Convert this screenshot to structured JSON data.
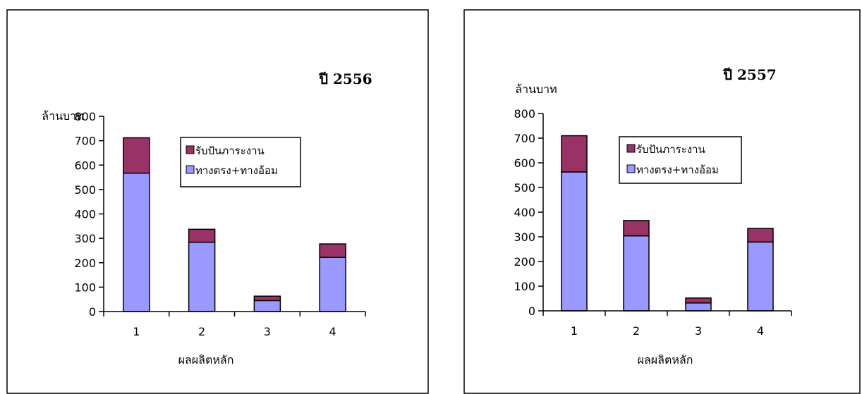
{
  "chart_data": [
    {
      "type": "bar",
      "stacked": true,
      "title": "ปี 2556",
      "xlabel": "ผลผลิตหลัก",
      "ylabel": "ล้านบาท",
      "categories": [
        "1",
        "2",
        "3",
        "4"
      ],
      "ylim": [
        0,
        800
      ],
      "yticks": [
        0,
        100,
        200,
        300,
        400,
        500,
        600,
        700,
        800
      ],
      "grid": false,
      "legend_position": "right",
      "series": [
        {
          "name": "ทางตรง+ทางอ้อม",
          "values": [
            567,
            284,
            45,
            222
          ],
          "color": "#9999ff"
        },
        {
          "name": "รับปันภาระงาน",
          "values": [
            145,
            53,
            18,
            55
          ],
          "color": "#993366"
        }
      ]
    },
    {
      "type": "bar",
      "stacked": true,
      "title": "ปี 2557",
      "xlabel": "ผลผลิตหลัก",
      "ylabel": "ล้านบาท",
      "categories": [
        "1",
        "2",
        "3",
        "4"
      ],
      "ylim": [
        0,
        800
      ],
      "yticks": [
        0,
        100,
        200,
        300,
        400,
        500,
        600,
        700,
        800
      ],
      "grid": false,
      "legend_position": "right",
      "series": [
        {
          "name": "ทางตรง+ทางอ้อม",
          "values": [
            563,
            304,
            32,
            279
          ],
          "color": "#9999ff"
        },
        {
          "name": "รับปันภาระงาน",
          "values": [
            147,
            62,
            20,
            55
          ],
          "color": "#993366"
        }
      ]
    }
  ]
}
